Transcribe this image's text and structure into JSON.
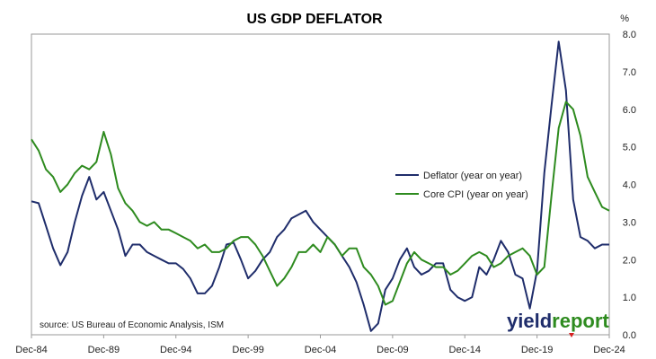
{
  "chart_data": {
    "type": "line",
    "title": "US GDP DEFLATOR",
    "unit_label": "%",
    "x_tick_labels": [
      "Dec-84",
      "Dec-89",
      "Dec-94",
      "Dec-99",
      "Dec-04",
      "Dec-09",
      "Dec-14",
      "Dec-19",
      "Dec-24"
    ],
    "x_tick_values": [
      1984.92,
      1989.92,
      1994.92,
      1999.92,
      2004.92,
      2009.92,
      2014.92,
      2019.92,
      2024.92
    ],
    "xlim": [
      1984.92,
      2024.92
    ],
    "ylim": [
      0,
      8
    ],
    "y_ticks": [
      0.0,
      1.0,
      2.0,
      3.0,
      4.0,
      5.0,
      6.0,
      7.0,
      8.0
    ],
    "y_tick_labels": [
      "0.0",
      "1.0",
      "2.0",
      "3.0",
      "4.0",
      "5.0",
      "6.0",
      "7.0",
      "8.0"
    ],
    "y_axis_side": "right",
    "grid": false,
    "legend_position": "center-right",
    "series": [
      {
        "name": "Deflator (year on year)",
        "color": "#1f2d6b",
        "x": [
          1984.92,
          1985.42,
          1985.92,
          1986.42,
          1986.92,
          1987.42,
          1987.92,
          1988.42,
          1988.92,
          1989.42,
          1989.92,
          1990.42,
          1990.92,
          1991.42,
          1991.92,
          1992.42,
          1992.92,
          1993.42,
          1993.92,
          1994.42,
          1994.92,
          1995.42,
          1995.92,
          1996.42,
          1996.92,
          1997.42,
          1997.92,
          1998.42,
          1998.92,
          1999.42,
          1999.92,
          2000.42,
          2000.92,
          2001.42,
          2001.92,
          2002.42,
          2002.92,
          2003.42,
          2003.92,
          2004.42,
          2004.92,
          2005.42,
          2005.92,
          2006.42,
          2006.92,
          2007.42,
          2007.92,
          2008.42,
          2008.92,
          2009.42,
          2009.92,
          2010.42,
          2010.92,
          2011.42,
          2011.92,
          2012.42,
          2012.92,
          2013.42,
          2013.92,
          2014.42,
          2014.92,
          2015.42,
          2015.92,
          2016.42,
          2016.92,
          2017.42,
          2017.92,
          2018.42,
          2018.92,
          2019.42,
          2019.92,
          2020.42,
          2020.92,
          2021.42,
          2021.92,
          2022.42,
          2022.92,
          2023.42,
          2023.92,
          2024.42,
          2024.92
        ],
        "values": [
          3.55,
          3.5,
          2.9,
          2.3,
          1.85,
          2.2,
          3.0,
          3.7,
          4.2,
          3.6,
          3.8,
          3.3,
          2.8,
          2.1,
          2.4,
          2.4,
          2.2,
          2.1,
          2.0,
          1.9,
          1.9,
          1.75,
          1.5,
          1.1,
          1.1,
          1.3,
          1.8,
          2.4,
          2.45,
          2.0,
          1.5,
          1.7,
          2.0,
          2.2,
          2.6,
          2.8,
          3.1,
          3.2,
          3.3,
          3.0,
          2.8,
          2.6,
          2.4,
          2.1,
          1.8,
          1.4,
          0.8,
          0.1,
          0.3,
          1.2,
          1.5,
          2.0,
          2.3,
          1.8,
          1.6,
          1.7,
          1.9,
          1.9,
          1.2,
          1.0,
          0.9,
          1.0,
          1.8,
          1.6,
          2.0,
          2.5,
          2.2,
          1.6,
          1.5,
          0.7,
          1.7,
          4.3,
          6.1,
          7.8,
          6.5,
          3.6,
          2.6,
          2.5,
          2.3,
          2.4,
          2.4
        ]
      },
      {
        "name": "Core CPI (year on year)",
        "color": "#2e8b1f",
        "x": [
          1984.92,
          1985.42,
          1985.92,
          1986.42,
          1986.92,
          1987.42,
          1987.92,
          1988.42,
          1988.92,
          1989.42,
          1989.92,
          1990.42,
          1990.92,
          1991.42,
          1991.92,
          1992.42,
          1992.92,
          1993.42,
          1993.92,
          1994.42,
          1994.92,
          1995.42,
          1995.92,
          1996.42,
          1996.92,
          1997.42,
          1997.92,
          1998.42,
          1998.92,
          1999.42,
          1999.92,
          2000.42,
          2000.92,
          2001.42,
          2001.92,
          2002.42,
          2002.92,
          2003.42,
          2003.92,
          2004.42,
          2004.92,
          2005.42,
          2005.92,
          2006.42,
          2006.92,
          2007.42,
          2007.92,
          2008.42,
          2008.92,
          2009.42,
          2009.92,
          2010.42,
          2010.92,
          2011.42,
          2011.92,
          2012.42,
          2012.92,
          2013.42,
          2013.92,
          2014.42,
          2014.92,
          2015.42,
          2015.92,
          2016.42,
          2016.92,
          2017.42,
          2017.92,
          2018.42,
          2018.92,
          2019.42,
          2019.92,
          2020.42,
          2020.92,
          2021.42,
          2021.92,
          2022.42,
          2022.92,
          2023.42,
          2023.92,
          2024.42,
          2024.92
        ],
        "values": [
          5.2,
          4.9,
          4.4,
          4.2,
          3.8,
          4.0,
          4.3,
          4.5,
          4.4,
          4.6,
          5.4,
          4.8,
          3.9,
          3.5,
          3.3,
          3.0,
          2.9,
          3.0,
          2.8,
          2.8,
          2.7,
          2.6,
          2.5,
          2.3,
          2.4,
          2.2,
          2.2,
          2.3,
          2.5,
          2.6,
          2.6,
          2.4,
          2.1,
          1.7,
          1.3,
          1.5,
          1.8,
          2.2,
          2.2,
          2.4,
          2.2,
          2.6,
          2.4,
          2.1,
          2.3,
          2.3,
          1.8,
          1.6,
          1.3,
          0.8,
          0.9,
          1.4,
          1.9,
          2.2,
          2.0,
          1.9,
          1.8,
          1.8,
          1.6,
          1.7,
          1.9,
          2.1,
          2.2,
          2.1,
          1.8,
          1.9,
          2.1,
          2.2,
          2.3,
          2.1,
          1.6,
          1.8,
          3.7,
          5.5,
          6.2,
          6.0,
          5.3,
          4.2,
          3.8,
          3.4,
          3.3
        ]
      }
    ]
  },
  "source": "source: US Bureau of Economic Analysis, ISM",
  "logo": {
    "part1": "yield",
    "part2": "report",
    "color1": "#1f2d6b",
    "color2": "#2e8b1f",
    "accent": "#d62020"
  }
}
